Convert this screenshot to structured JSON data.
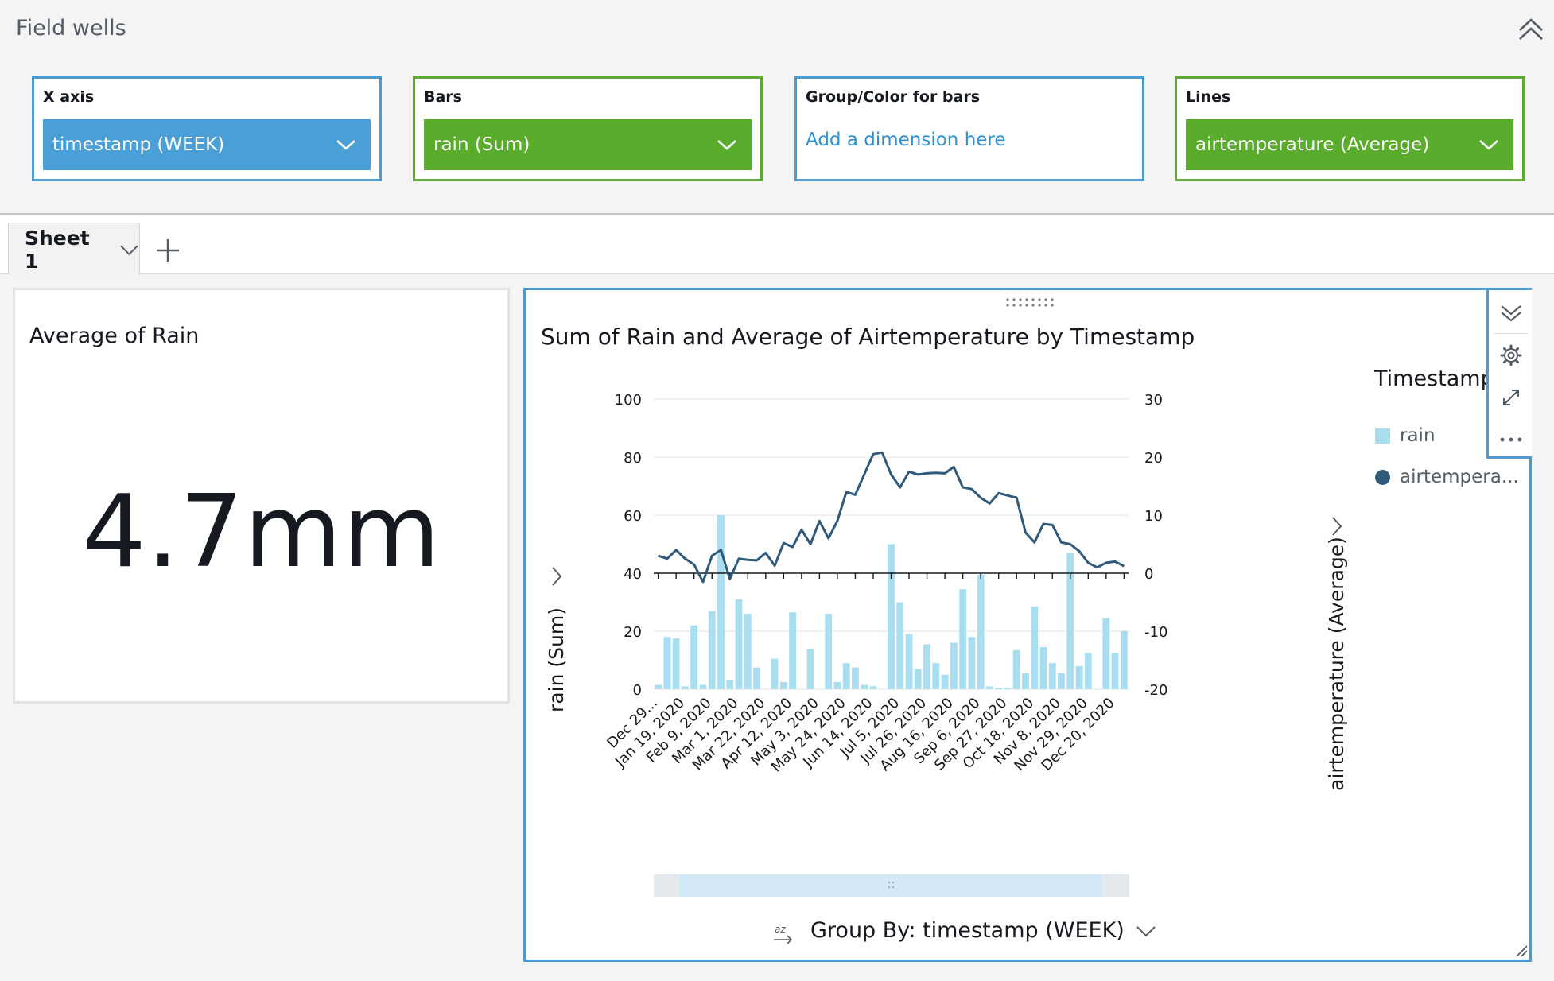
{
  "field_wells": {
    "title": "Field wells",
    "wells": [
      {
        "label": "X axis",
        "value": "timestamp (WEEK)"
      },
      {
        "label": "Bars",
        "value": "rain (Sum)"
      },
      {
        "label": "Group/Color for bars",
        "placeholder": "Add a dimension here"
      },
      {
        "label": "Lines",
        "value": "airtemperature (Average)"
      }
    ]
  },
  "sheets": {
    "tabs": [
      {
        "label": "Sheet 1"
      }
    ]
  },
  "kpi": {
    "title": "Average of Rain",
    "value": "4.7mm"
  },
  "chart": {
    "title": "Sum of Rain and Average of Airtemperature by Timestamp",
    "legend_title": "Timestamp",
    "legend_items": [
      "rain",
      "airtempera..."
    ],
    "group_by": "Group By: timestamp (WEEK)",
    "sort_label": "az",
    "colors": {
      "bar": "#a9ddf0",
      "line": "#2f5a7a",
      "accent": "#4b9bd4"
    }
  },
  "chart_data": {
    "type": "bar",
    "title": "Sum of Rain and Average of Airtemperature by Timestamp",
    "xlabel": "",
    "ylabel": "rain (Sum)",
    "y2label": "airtemperature (Average)",
    "ylim": [
      0,
      100
    ],
    "y2lim": [
      -20,
      30
    ],
    "yticks": [
      "100",
      "80",
      "60",
      "40",
      "20",
      "0"
    ],
    "y2ticks": [
      "30",
      "20",
      "10",
      "0",
      "-10",
      "-20"
    ],
    "x_tick_labels": [
      "Dec 29...",
      "Jan 19, 2020",
      "Feb 9, 2020",
      "Mar 1, 2020",
      "Mar 22, 2020",
      "Apr 12, 2020",
      "May 3, 2020",
      "May 24, 2020",
      "Jun 14, 2020",
      "Jul 5, 2020",
      "Jul 26, 2020",
      "Aug 16, 2020",
      "Sep 6, 2020",
      "Sep 27, 2020",
      "Oct 18, 2020",
      "Nov 8, 2020",
      "Nov 29, 2020",
      "Dec 20, 2020"
    ],
    "legend_position": "right",
    "grid": true,
    "series": [
      {
        "name": "rain",
        "type": "bar",
        "axis": "left",
        "values": [
          1.5,
          18,
          17.5,
          1,
          22,
          1.5,
          27,
          60,
          3,
          31,
          26,
          7.5,
          0,
          10.5,
          2.5,
          26.5,
          0,
          14,
          0,
          26,
          2.5,
          9,
          7.5,
          1.5,
          1,
          0,
          50,
          30,
          19,
          7,
          15.5,
          9,
          5,
          16,
          34.5,
          18,
          39.5,
          1,
          0.5,
          0.5,
          13.5,
          5.5,
          28.5,
          14.5,
          9,
          5.5,
          47,
          8,
          12.5,
          0,
          24.5,
          12.5,
          20
        ]
      },
      {
        "name": "airtemperature",
        "type": "line",
        "axis": "right",
        "values": [
          3,
          2.5,
          4,
          2.5,
          1.5,
          -1.5,
          3,
          4,
          -1,
          2.5,
          2.3,
          2.2,
          3.5,
          1.3,
          5.2,
          4.5,
          7.5,
          5,
          9,
          6,
          9,
          14,
          13.5,
          17,
          20.5,
          20.8,
          17,
          14.8,
          17.5,
          17,
          17.2,
          17.3,
          17.2,
          18.3,
          14.8,
          14.5,
          13,
          12,
          13.8,
          13.4,
          13,
          7,
          5.3,
          8.5,
          8.3,
          5.3,
          5,
          3.8,
          1.8,
          1,
          1.8,
          2,
          1.2
        ]
      }
    ]
  }
}
